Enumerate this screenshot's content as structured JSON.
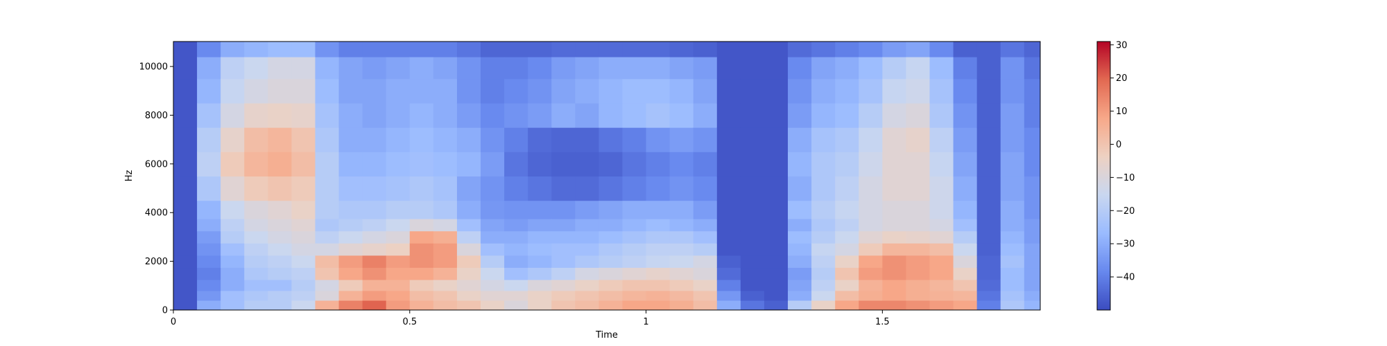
{
  "chart_data": {
    "type": "heatmap",
    "title": "",
    "xlabel": "Time",
    "ylabel": "Hz",
    "xlim": [
      0,
      1.834
    ],
    "ylim": [
      0,
      11025
    ],
    "x_ticks": [
      0,
      0.5,
      1,
      1.5
    ],
    "x_tick_labels": [
      "0",
      "0.5",
      "1",
      "1.5"
    ],
    "y_ticks": [
      0,
      2000,
      4000,
      6000,
      8000,
      10000
    ],
    "y_tick_labels": [
      "0",
      "2000",
      "4000",
      "6000",
      "8000",
      "10000"
    ],
    "colormap": "coolwarm",
    "colormap_stops": [
      "#3b4cc0",
      "#6788ee",
      "#9abbff",
      "#c9d7f0",
      "#edd1c2",
      "#f7a889",
      "#e26952",
      "#b40426"
    ],
    "colorbar": {
      "range": [
        -50,
        31
      ],
      "ticks": [
        30,
        20,
        10,
        0,
        -10,
        -20,
        -30,
        -40
      ],
      "tick_labels": [
        "30",
        "20",
        "10",
        "0",
        "−10",
        "−20",
        "−30",
        "−40"
      ]
    },
    "time_frames": [
      0.0,
      0.05,
      0.1,
      0.15,
      0.2,
      0.25,
      0.3,
      0.35,
      0.4,
      0.45,
      0.5,
      0.55,
      0.6,
      0.65,
      0.7,
      0.75,
      0.8,
      0.85,
      0.9,
      0.95,
      1.0,
      1.05,
      1.1,
      1.15,
      1.2,
      1.25,
      1.3,
      1.35,
      1.4,
      1.45,
      1.5,
      1.55,
      1.6,
      1.65,
      1.7,
      1.75,
      1.8
    ],
    "freq_bins": [
      200,
      600,
      1000,
      1500,
      2000,
      2500,
      3000,
      3500,
      4000,
      5000,
      6000,
      7000,
      8000,
      9000,
      10000,
      10800
    ],
    "levels_db": [
      [
        -48,
        -48,
        -48,
        -48,
        -48,
        -48,
        -48,
        -48,
        -48,
        -48,
        -48,
        -48,
        -48,
        -48,
        -48,
        -48
      ],
      [
        -30,
        -35,
        -38,
        -40,
        -38,
        -36,
        -34,
        -30,
        -28,
        -22,
        -18,
        -20,
        -24,
        -28,
        -30,
        -38
      ],
      [
        -25,
        -25,
        -30,
        -30,
        -28,
        -25,
        -20,
        -18,
        -15,
        -8,
        -2,
        -6,
        -12,
        -16,
        -18,
        -30
      ],
      [
        -20,
        -22,
        -25,
        -22,
        -20,
        -18,
        -15,
        -12,
        -10,
        -2,
        4,
        2,
        -6,
        -12,
        -15,
        -28
      ],
      [
        -20,
        -20,
        -25,
        -20,
        -18,
        -15,
        -12,
        -10,
        -8,
        0,
        6,
        4,
        -5,
        -10,
        -12,
        -26
      ],
      [
        -15,
        -18,
        -20,
        -18,
        -15,
        -12,
        -10,
        -8,
        -5,
        -2,
        2,
        0,
        -6,
        -10,
        -12,
        -26
      ],
      [
        5,
        -10,
        -12,
        0,
        2,
        -12,
        -18,
        -22,
        -20,
        -20,
        -20,
        -22,
        -24,
        -26,
        -28,
        -36
      ],
      [
        15,
        5,
        -2,
        8,
        10,
        -8,
        -15,
        -20,
        -22,
        -25,
        -28,
        -30,
        -30,
        -32,
        -32,
        -40
      ],
      [
        20,
        10,
        5,
        12,
        15,
        -6,
        -12,
        -18,
        -22,
        -25,
        -28,
        -30,
        -32,
        -32,
        -34,
        -40
      ],
      [
        10,
        8,
        5,
        8,
        10,
        -4,
        -10,
        -15,
        -20,
        -24,
        -26,
        -28,
        -30,
        -30,
        -32,
        -40
      ],
      [
        5,
        2,
        -2,
        8,
        12,
        12,
        8,
        -10,
        -20,
        -22,
        -25,
        -26,
        -28,
        -30,
        -30,
        -40
      ],
      [
        2,
        0,
        -5,
        5,
        10,
        10,
        6,
        -12,
        -22,
        -24,
        -26,
        -28,
        -30,
        -30,
        -32,
        -40
      ],
      [
        0,
        -5,
        -8,
        -5,
        -2,
        -10,
        -18,
        -25,
        -30,
        -32,
        -28,
        -30,
        -34,
        -36,
        -36,
        -42
      ],
      [
        -5,
        -8,
        -12,
        -15,
        -20,
        -25,
        -30,
        -32,
        -35,
        -36,
        -34,
        -36,
        -38,
        -40,
        -40,
        -45
      ],
      [
        -10,
        -8,
        -15,
        -25,
        -30,
        -28,
        -30,
        -34,
        -36,
        -40,
        -42,
        -40,
        -36,
        -38,
        -40,
        -45
      ],
      [
        -5,
        -5,
        -10,
        -22,
        -28,
        -26,
        -28,
        -32,
        -36,
        -42,
        -45,
        -44,
        -34,
        -36,
        -38,
        -45
      ],
      [
        0,
        -2,
        -8,
        -18,
        -25,
        -25,
        -28,
        -32,
        -36,
        -44,
        -46,
        -45,
        -30,
        -32,
        -34,
        -44
      ],
      [
        2,
        0,
        -5,
        -12,
        -22,
        -25,
        -28,
        -30,
        -34,
        -44,
        -46,
        -45,
        -32,
        -30,
        -32,
        -44
      ],
      [
        5,
        2,
        -2,
        -10,
        -20,
        -22,
        -26,
        -30,
        -32,
        -42,
        -45,
        -42,
        -28,
        -28,
        -30,
        -44
      ],
      [
        8,
        4,
        0,
        -8,
        -18,
        -20,
        -24,
        -28,
        -30,
        -40,
        -42,
        -40,
        -26,
        -26,
        -30,
        -44
      ],
      [
        8,
        5,
        0,
        -6,
        -16,
        -18,
        -22,
        -26,
        -30,
        -38,
        -40,
        -36,
        -24,
        -26,
        -30,
        -44
      ],
      [
        6,
        3,
        -2,
        -8,
        -15,
        -18,
        -22,
        -28,
        -30,
        -36,
        -38,
        -34,
        -26,
        -28,
        -32,
        -45
      ],
      [
        2,
        0,
        -5,
        -10,
        -12,
        -20,
        -25,
        -30,
        -34,
        -38,
        -40,
        -36,
        -30,
        -32,
        -34,
        -46
      ],
      [
        -30,
        -35,
        -40,
        -44,
        -46,
        -48,
        -48,
        -48,
        -48,
        -48,
        -48,
        -48,
        -48,
        -48,
        -48,
        -48
      ],
      [
        -42,
        -46,
        -48,
        -48,
        -48,
        -48,
        -48,
        -48,
        -48,
        -48,
        -48,
        -48,
        -48,
        -48,
        -48,
        -48
      ],
      [
        -46,
        -48,
        -48,
        -48,
        -48,
        -48,
        -48,
        -48,
        -48,
        -48,
        -48,
        -48,
        -48,
        -48,
        -48,
        -48
      ],
      [
        -20,
        -30,
        -32,
        -34,
        -30,
        -28,
        -26,
        -30,
        -26,
        -30,
        -28,
        -30,
        -34,
        -36,
        -38,
        -44
      ],
      [
        -5,
        -15,
        -18,
        -20,
        -18,
        -16,
        -20,
        -22,
        -20,
        -22,
        -22,
        -24,
        -28,
        -30,
        -32,
        -42
      ],
      [
        8,
        2,
        -5,
        0,
        -5,
        -12,
        -15,
        -18,
        -16,
        -18,
        -20,
        -22,
        -26,
        -28,
        -30,
        -40
      ],
      [
        14,
        6,
        5,
        10,
        8,
        -2,
        -8,
        -12,
        -12,
        -12,
        -14,
        -16,
        -20,
        -24,
        -26,
        -38
      ],
      [
        14,
        8,
        8,
        12,
        12,
        4,
        -5,
        -10,
        -10,
        -8,
        -8,
        -8,
        -12,
        -16,
        -20,
        -34
      ],
      [
        12,
        6,
        6,
        10,
        10,
        4,
        -6,
        -10,
        -10,
        -8,
        -8,
        -6,
        -10,
        -14,
        -16,
        -32
      ],
      [
        10,
        5,
        4,
        8,
        8,
        2,
        -8,
        -12,
        -14,
        -14,
        -16,
        -18,
        -22,
        -24,
        -26,
        -38
      ],
      [
        8,
        4,
        0,
        -5,
        -10,
        -15,
        -20,
        -25,
        -28,
        -30,
        -32,
        -34,
        -36,
        -38,
        -40,
        -46
      ],
      [
        -40,
        -42,
        -44,
        -45,
        -45,
        -46,
        -46,
        -46,
        -46,
        -46,
        -46,
        -46,
        -46,
        -46,
        -46,
        -46
      ],
      [
        -22,
        -24,
        -26,
        -26,
        -24,
        -26,
        -28,
        -30,
        -30,
        -32,
        -32,
        -34,
        -34,
        -36,
        -36,
        -42
      ],
      [
        -28,
        -30,
        -32,
        -32,
        -32,
        -32,
        -34,
        -34,
        -36,
        -36,
        -38,
        -38,
        -40,
        -40,
        -42,
        -45
      ]
    ]
  }
}
